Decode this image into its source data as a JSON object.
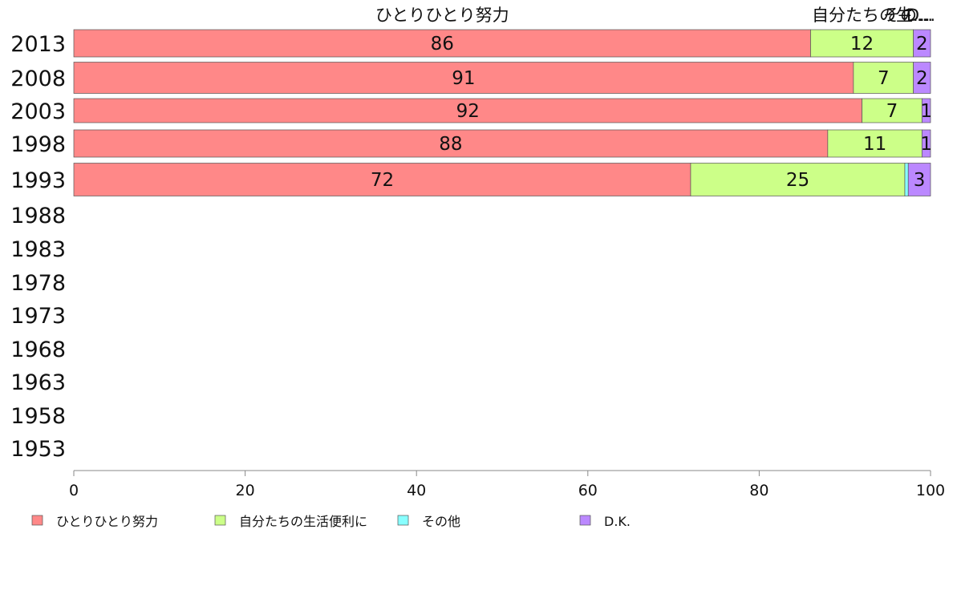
{
  "chart_data": {
    "type": "bar",
    "orientation": "horizontal",
    "stacked": true,
    "categories": [
      "2013",
      "2008",
      "2003",
      "1998",
      "1993",
      "1988",
      "1983",
      "1978",
      "1973",
      "1968",
      "1963",
      "1958",
      "1953"
    ],
    "series": [
      {
        "name": "ひとりひとり努力",
        "color": "#ff8888",
        "values": [
          86,
          91,
          92,
          88,
          72,
          null,
          null,
          null,
          null,
          null,
          null,
          null,
          null
        ],
        "labels": [
          "86",
          "91",
          "92",
          "88",
          "72"
        ]
      },
      {
        "name": "自分たちの生活便利に",
        "color": "#ccff88",
        "values": [
          12,
          7,
          7,
          11,
          25,
          null,
          null,
          null,
          null,
          null,
          null,
          null,
          null
        ],
        "labels": [
          "12",
          "7",
          "7",
          "11",
          "25"
        ]
      },
      {
        "name": "その他",
        "color": "#88ffff",
        "values": [
          0,
          0,
          0,
          0,
          0.4,
          null,
          null,
          null,
          null,
          null,
          null,
          null,
          null
        ],
        "labels": [
          "",
          "",
          "",
          "",
          ""
        ]
      },
      {
        "name": "D.K.",
        "color": "#bb88ff",
        "values": [
          2,
          2,
          1,
          1,
          3,
          null,
          null,
          null,
          null,
          null,
          null,
          null,
          null
        ],
        "labels": [
          "2",
          "2",
          "1",
          "1",
          "3"
        ]
      }
    ],
    "column_headers": [
      "ひとりひとり努力",
      "自分たちの生活便利に",
      "その他",
      "D.K."
    ],
    "column_header_displays": [
      "ひとりひとり努力",
      "自分たちの生...",
      "その...",
      "D..."
    ],
    "xlim": [
      0,
      100
    ],
    "xticks": [
      "0",
      "20",
      "40",
      "60",
      "80",
      "100"
    ],
    "legend_position": "bottom",
    "grid": false
  }
}
